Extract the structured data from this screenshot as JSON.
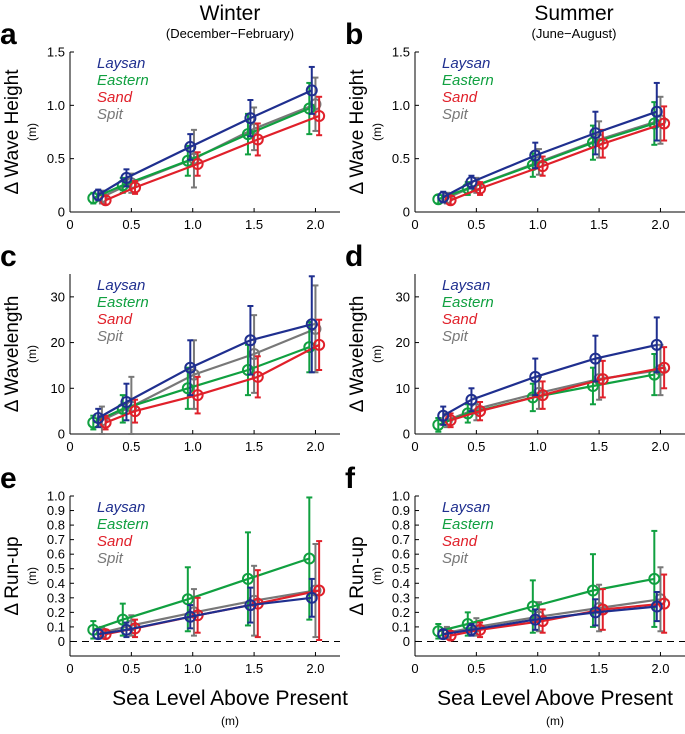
{
  "figure": {
    "columns": [
      {
        "title": "Winter",
        "subtitle": "(December−February)"
      },
      {
        "title": "Summer",
        "subtitle": "(June−August)"
      }
    ],
    "xlabel": "Sea Level Above Present",
    "xunit": "(m)"
  },
  "colors": {
    "Laysan": "#1f2f8f",
    "Eastern": "#10a040",
    "Sand": "#e0202a",
    "Spit": "#787878"
  },
  "chart_data": [
    {
      "type": "line",
      "letter": "a",
      "season": "Winter",
      "ylabel": "Δ Wave Height",
      "yunit": "(m)",
      "xlim": [
        0,
        2.2
      ],
      "ylim": [
        0,
        1.5
      ],
      "xticks": [
        0,
        0.5,
        1.0,
        1.5,
        2.0
      ],
      "xticklabels": [
        "0",
        "0.5",
        "1.0",
        "1.5",
        "2.0"
      ],
      "yticks": [
        0,
        0.5,
        1.0,
        1.5
      ],
      "yticklabels": [
        "0",
        "0.5",
        "1.0",
        "1.5"
      ],
      "zero_line": false,
      "series": [
        {
          "name": "Laysan",
          "x": [
            0.23,
            0.46,
            0.98,
            1.47,
            1.97
          ],
          "y": [
            0.16,
            0.32,
            0.61,
            0.88,
            1.14
          ],
          "err": [
            0.05,
            0.08,
            0.12,
            0.17,
            0.22
          ]
        },
        {
          "name": "Eastern",
          "x": [
            0.19,
            0.43,
            0.96,
            1.45,
            1.95
          ],
          "y": [
            0.13,
            0.25,
            0.48,
            0.73,
            0.97
          ],
          "err": [
            0.05,
            0.07,
            0.14,
            0.19,
            0.24
          ]
        },
        {
          "name": "Sand",
          "x": [
            0.29,
            0.53,
            1.04,
            1.53,
            2.03
          ],
          "y": [
            0.11,
            0.23,
            0.45,
            0.68,
            0.9
          ],
          "err": [
            0.04,
            0.06,
            0.11,
            0.15,
            0.18
          ]
        },
        {
          "name": "Spit",
          "x": [
            0.26,
            0.5,
            1.01,
            1.5,
            2.0
          ],
          "y": [
            0.14,
            0.27,
            0.5,
            0.78,
            1.01
          ],
          "err": [
            0.06,
            0.09,
            0.27,
            0.2,
            0.25
          ]
        }
      ]
    },
    {
      "type": "line",
      "letter": "b",
      "season": "Summer",
      "ylabel": "Δ Wave Height",
      "yunit": "(m)",
      "xlim": [
        0,
        2.2
      ],
      "ylim": [
        0,
        1.5
      ],
      "xticks": [
        0,
        0.5,
        1.0,
        1.5,
        2.0
      ],
      "xticklabels": [
        "0",
        "0.5",
        "1.0",
        "1.5",
        "2.0"
      ],
      "yticks": [
        0,
        0.5,
        1.0,
        1.5
      ],
      "yticklabels": [
        "0",
        "0.5",
        "1.0",
        "1.5"
      ],
      "zero_line": false,
      "series": [
        {
          "name": "Laysan",
          "x": [
            0.23,
            0.46,
            0.98,
            1.47,
            1.97
          ],
          "y": [
            0.14,
            0.28,
            0.53,
            0.74,
            0.94
          ],
          "err": [
            0.05,
            0.06,
            0.12,
            0.2,
            0.27
          ]
        },
        {
          "name": "Eastern",
          "x": [
            0.19,
            0.43,
            0.96,
            1.45,
            1.95
          ],
          "y": [
            0.12,
            0.22,
            0.44,
            0.65,
            0.83
          ],
          "err": [
            0.04,
            0.06,
            0.11,
            0.16,
            0.2
          ]
        },
        {
          "name": "Sand",
          "x": [
            0.29,
            0.53,
            1.04,
            1.53,
            2.03
          ],
          "y": [
            0.11,
            0.22,
            0.43,
            0.64,
            0.83
          ],
          "err": [
            0.04,
            0.06,
            0.09,
            0.13,
            0.16
          ]
        },
        {
          "name": "Spit",
          "x": [
            0.26,
            0.5,
            1.01,
            1.5,
            2.0
          ],
          "y": [
            0.13,
            0.25,
            0.47,
            0.68,
            0.86
          ],
          "err": [
            0.05,
            0.07,
            0.12,
            0.17,
            0.22
          ]
        }
      ]
    },
    {
      "type": "line",
      "letter": "c",
      "season": "Winter",
      "ylabel": "Δ Wavelength",
      "yunit": "(m)",
      "xlim": [
        0,
        2.2
      ],
      "ylim": [
        0,
        35
      ],
      "xticks": [
        0,
        0.5,
        1.0,
        1.5,
        2.0
      ],
      "xticklabels": [
        "0",
        "0.5",
        "1.0",
        "1.5",
        "2.0"
      ],
      "yticks": [
        0,
        10,
        20,
        30
      ],
      "yticklabels": [
        "0",
        "10",
        "20",
        "30"
      ],
      "zero_line": false,
      "series": [
        {
          "name": "Laysan",
          "x": [
            0.23,
            0.46,
            0.98,
            1.47,
            1.97
          ],
          "y": [
            3.5,
            7,
            14.5,
            20.5,
            24
          ],
          "err": [
            2.0,
            4.0,
            6.0,
            7.5,
            10.5
          ]
        },
        {
          "name": "Eastern",
          "x": [
            0.19,
            0.43,
            0.96,
            1.45,
            1.95
          ],
          "y": [
            2.5,
            5.5,
            10,
            14,
            19
          ],
          "err": [
            1.5,
            3.0,
            4.5,
            5.5,
            5.5
          ]
        },
        {
          "name": "Sand",
          "x": [
            0.29,
            0.53,
            1.04,
            1.53,
            2.03
          ],
          "y": [
            2.5,
            5,
            8.5,
            12.5,
            19.5
          ],
          "err": [
            1.5,
            2.5,
            4.0,
            4.5,
            5.5
          ]
        },
        {
          "name": "Spit",
          "x": [
            0.26,
            0.5,
            1.01,
            1.5,
            2.0
          ],
          "y": [
            3,
            6,
            13,
            17.5,
            23
          ],
          "err": [
            3.0,
            6.5,
            7.5,
            8.5,
            9.5
          ]
        }
      ]
    },
    {
      "type": "line",
      "letter": "d",
      "season": "Summer",
      "ylabel": "Δ Wavelength",
      "yunit": "(m)",
      "xlim": [
        0,
        2.2
      ],
      "ylim": [
        0,
        35
      ],
      "xticks": [
        0,
        0.5,
        1.0,
        1.5,
        2.0
      ],
      "xticklabels": [
        "0",
        "0.5",
        "1.0",
        "1.5",
        "2.0"
      ],
      "yticks": [
        0,
        10,
        20,
        30
      ],
      "yticklabels": [
        "0",
        "10",
        "20",
        "30"
      ],
      "zero_line": false,
      "series": [
        {
          "name": "Laysan",
          "x": [
            0.23,
            0.46,
            0.98,
            1.47,
            1.97
          ],
          "y": [
            4,
            7.5,
            12.5,
            16.5,
            19.5
          ],
          "err": [
            2.0,
            2.5,
            4.0,
            5.0,
            6.0
          ]
        },
        {
          "name": "Eastern",
          "x": [
            0.19,
            0.43,
            0.96,
            1.45,
            1.95
          ],
          "y": [
            2,
            4.5,
            8,
            10.5,
            13
          ],
          "err": [
            1.5,
            2.0,
            3.0,
            4.0,
            4.5
          ]
        },
        {
          "name": "Sand",
          "x": [
            0.29,
            0.53,
            1.04,
            1.53,
            2.03
          ],
          "y": [
            3,
            5,
            8.5,
            12,
            14.5
          ],
          "err": [
            1.5,
            2.0,
            3.0,
            4.0,
            4.5
          ]
        },
        {
          "name": "Spit",
          "x": [
            0.26,
            0.5,
            1.01,
            1.5,
            2.0
          ],
          "y": [
            3,
            5.5,
            9,
            12,
            14
          ],
          "err": [
            1.5,
            2.5,
            3.5,
            4.5,
            5.5
          ]
        }
      ]
    },
    {
      "type": "line",
      "letter": "e",
      "season": "Winter",
      "ylabel": "Δ Run-up",
      "yunit": "(m)",
      "xlim": [
        0,
        2.2
      ],
      "ylim": [
        -0.1,
        1.0
      ],
      "xticks": [
        0,
        0.5,
        1.0,
        1.5,
        2.0
      ],
      "xticklabels": [
        "0",
        "0.5",
        "1.0",
        "1.5",
        "2.0"
      ],
      "yticks": [
        0,
        0.1,
        0.2,
        0.3,
        0.4,
        0.5,
        0.6,
        0.7,
        0.8,
        0.9,
        1.0
      ],
      "yticklabels": [
        "0",
        "0.1",
        "0.2",
        "0.3",
        "0.4",
        "0.5",
        "0.6",
        "0.7",
        "0.8",
        "0.9",
        "1.0"
      ],
      "zero_line": true,
      "series": [
        {
          "name": "Laysan",
          "x": [
            0.23,
            0.46,
            0.98,
            1.47,
            1.97
          ],
          "y": [
            0.05,
            0.08,
            0.17,
            0.25,
            0.3
          ],
          "err": [
            0.03,
            0.05,
            0.08,
            0.12,
            0.13
          ]
        },
        {
          "name": "Eastern",
          "x": [
            0.19,
            0.43,
            0.96,
            1.45,
            1.95
          ],
          "y": [
            0.08,
            0.15,
            0.29,
            0.43,
            0.57
          ],
          "err": [
            0.06,
            0.11,
            0.22,
            0.32,
            0.42
          ]
        },
        {
          "name": "Sand",
          "x": [
            0.29,
            0.53,
            1.04,
            1.53,
            2.03
          ],
          "y": [
            0.05,
            0.09,
            0.18,
            0.26,
            0.35
          ],
          "err": [
            0.03,
            0.06,
            0.12,
            0.23,
            0.34
          ]
        },
        {
          "name": "Spit",
          "x": [
            0.26,
            0.5,
            1.01,
            1.5,
            2.0
          ],
          "y": [
            0.06,
            0.11,
            0.2,
            0.28,
            0.35
          ],
          "err": [
            0.04,
            0.07,
            0.16,
            0.24,
            0.32
          ]
        }
      ]
    },
    {
      "type": "line",
      "letter": "f",
      "season": "Summer",
      "ylabel": "Δ Run-up",
      "yunit": "(m)",
      "xlim": [
        0,
        2.2
      ],
      "ylim": [
        -0.1,
        1.0
      ],
      "xticks": [
        0,
        0.5,
        1.0,
        1.5,
        2.0
      ],
      "xticklabels": [
        "0",
        "0.5",
        "1.0",
        "1.5",
        "2.0"
      ],
      "yticks": [
        0,
        0.1,
        0.2,
        0.3,
        0.4,
        0.5,
        0.6,
        0.7,
        0.8,
        0.9,
        1.0
      ],
      "yticklabels": [
        "0",
        "0.1",
        "0.2",
        "0.3",
        "0.4",
        "0.5",
        "0.6",
        "0.7",
        "0.8",
        "0.9",
        "1.0"
      ],
      "zero_line": true,
      "series": [
        {
          "name": "Laysan",
          "x": [
            0.23,
            0.46,
            0.98,
            1.47,
            1.97
          ],
          "y": [
            0.05,
            0.08,
            0.15,
            0.2,
            0.24
          ],
          "err": [
            0.03,
            0.04,
            0.07,
            0.09,
            0.1
          ]
        },
        {
          "name": "Eastern",
          "x": [
            0.19,
            0.43,
            0.96,
            1.45,
            1.95
          ],
          "y": [
            0.07,
            0.12,
            0.24,
            0.35,
            0.43
          ],
          "err": [
            0.05,
            0.08,
            0.18,
            0.25,
            0.33
          ]
        },
        {
          "name": "Sand",
          "x": [
            0.29,
            0.53,
            1.04,
            1.53,
            2.03
          ],
          "y": [
            0.04,
            0.08,
            0.14,
            0.22,
            0.26
          ],
          "err": [
            0.03,
            0.05,
            0.08,
            0.14,
            0.2
          ]
        },
        {
          "name": "Spit",
          "x": [
            0.26,
            0.5,
            1.01,
            1.5,
            2.0
          ],
          "y": [
            0.06,
            0.1,
            0.17,
            0.23,
            0.29
          ],
          "err": [
            0.04,
            0.06,
            0.1,
            0.16,
            0.22
          ]
        }
      ]
    }
  ]
}
